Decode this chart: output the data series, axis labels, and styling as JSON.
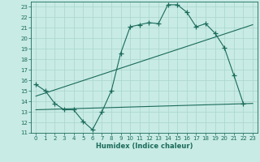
{
  "title": "",
  "xlabel": "Humidex (Indice chaleur)",
  "bg_color": "#c8ebe5",
  "line_color": "#1a6b5a",
  "grid_color": "#a8d5cc",
  "xlim": [
    -0.5,
    23.5
  ],
  "ylim": [
    11,
    23.5
  ],
  "yticks": [
    11,
    12,
    13,
    14,
    15,
    16,
    17,
    18,
    19,
    20,
    21,
    22,
    23
  ],
  "xticks": [
    0,
    1,
    2,
    3,
    4,
    5,
    6,
    7,
    8,
    9,
    10,
    11,
    12,
    13,
    14,
    15,
    16,
    17,
    18,
    19,
    20,
    21,
    22,
    23
  ],
  "curve_x": [
    0,
    1,
    2,
    3,
    4,
    5,
    6,
    7,
    8,
    9,
    10,
    11,
    12,
    13,
    14,
    15,
    16,
    17,
    18,
    19,
    20,
    21,
    22
  ],
  "curve_y": [
    15.6,
    15.0,
    13.8,
    13.2,
    13.2,
    12.1,
    11.3,
    13.0,
    15.0,
    18.6,
    21.1,
    21.3,
    21.5,
    21.4,
    23.2,
    23.2,
    22.5,
    21.1,
    21.4,
    20.5,
    19.1,
    16.5,
    13.8
  ],
  "line1_x": [
    0,
    23
  ],
  "line1_y": [
    14.5,
    21.3
  ],
  "line2_x": [
    0,
    23
  ],
  "line2_y": [
    13.2,
    13.8
  ]
}
